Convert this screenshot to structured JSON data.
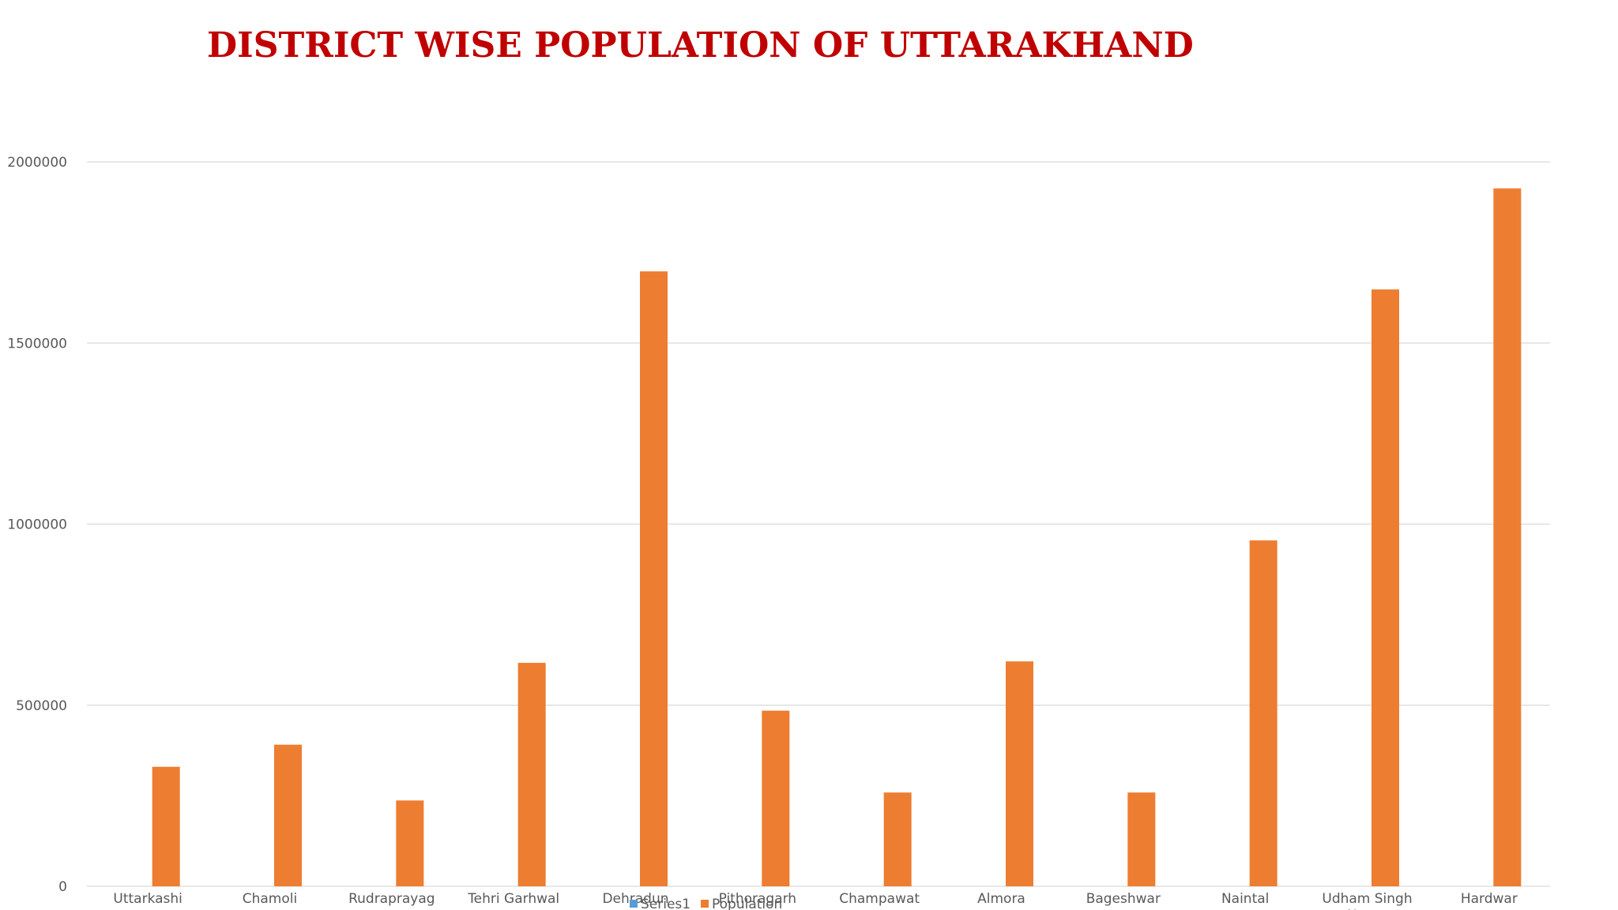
{
  "chart_data": {
    "type": "bar",
    "title": "DISTRICT WISE POPULATION OF UTTARAKHAND",
    "xlabel": "",
    "ylabel": "",
    "ylim": [
      0,
      2000000
    ],
    "yticks": [
      0,
      500000,
      1000000,
      1500000,
      2000000
    ],
    "ytick_labels": [
      "0",
      "500000",
      "1000000",
      "1500000",
      "2000000"
    ],
    "grid": true,
    "legend_position": "bottom",
    "categories": [
      [
        "Uttarkashi"
      ],
      [
        "Chamoli"
      ],
      [
        "Rudraprayag"
      ],
      [
        "Tehri Garhwal"
      ],
      [
        "Dehradun"
      ],
      [
        "Pithoragarh"
      ],
      [
        "Champawat"
      ],
      [
        "Almora"
      ],
      [
        "Bageshwar"
      ],
      [
        "Naintal"
      ],
      [
        "Udham Singh",
        "Nagar"
      ],
      [
        "Hardwar"
      ]
    ],
    "series": [
      {
        "name": "Series1",
        "color": "#5b9bd5",
        "values": [
          0,
          0,
          0,
          0,
          0,
          0,
          0,
          0,
          0,
          0,
          0,
          0
        ]
      },
      {
        "name": "Population",
        "color": "#ed7d31",
        "values": [
          330000,
          391000,
          237000,
          617000,
          1698000,
          485000,
          259000,
          621000,
          259000,
          955000,
          1648000,
          1927000
        ]
      }
    ]
  }
}
